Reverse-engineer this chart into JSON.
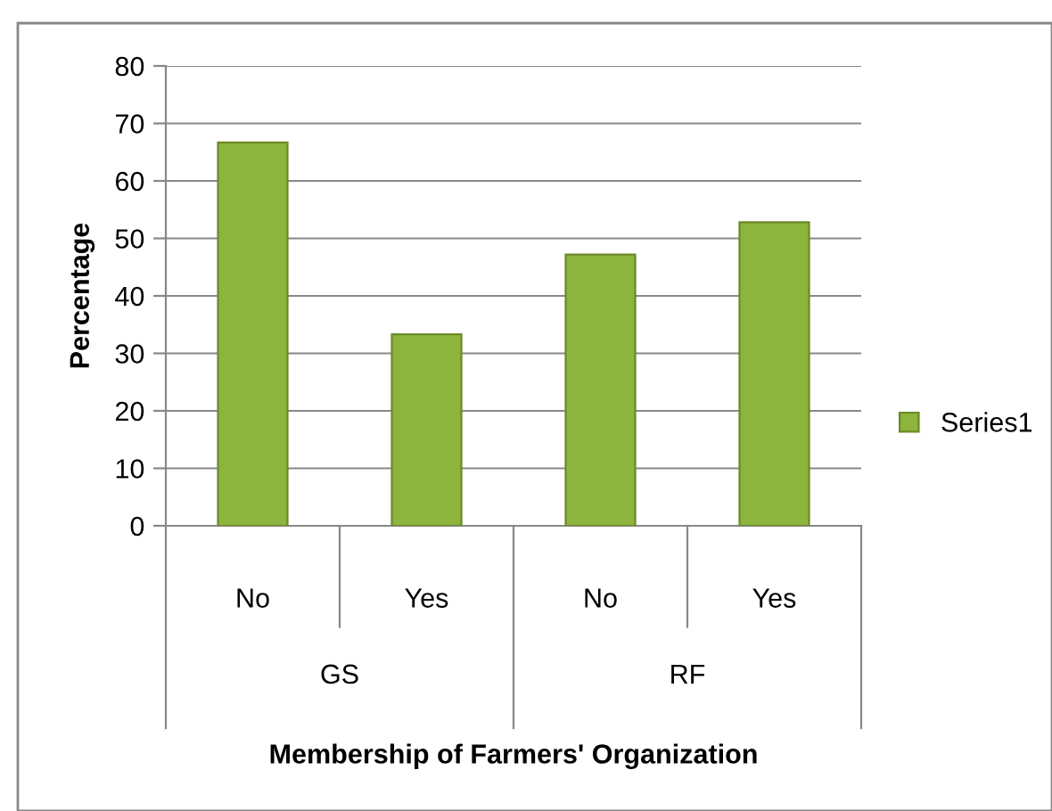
{
  "chart_data": {
    "type": "bar",
    "xlabel": "Membership of Farmers' Organization",
    "ylabel": "Percentage",
    "categories": [
      "No",
      "Yes",
      "No",
      "Yes"
    ],
    "series": [
      {
        "name": "Series1",
        "color": "#8db43c",
        "values": [
          66.7,
          33.3,
          47.2,
          52.8
        ]
      }
    ],
    "annotations": [
      "GS",
      "RF"
    ],
    "ylim": [
      0,
      80
    ],
    "yticks": [
      0,
      10,
      20,
      30,
      40,
      50,
      60,
      70,
      80
    ],
    "grid": "y",
    "legend": "right"
  }
}
